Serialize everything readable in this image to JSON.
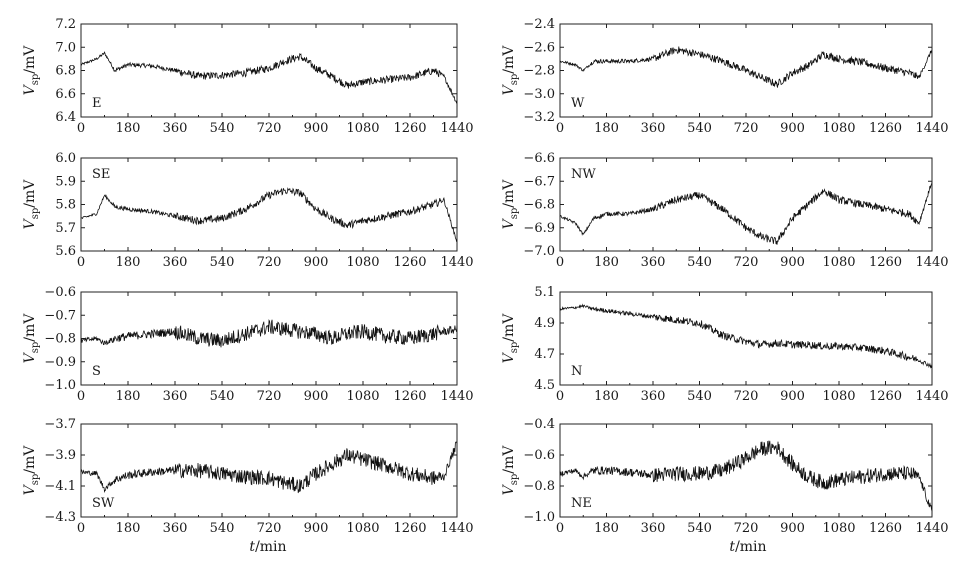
{
  "chart_data": [
    {
      "type": "line",
      "panel_label": "E",
      "ylabel": "V",
      "ylabel_sub": "sp",
      "ylabel_unit": "/mV",
      "xlim": [
        0,
        1440
      ],
      "ylim": [
        6.4,
        7.2
      ],
      "xticks": [
        "0",
        "180",
        "360",
        "540",
        "720",
        "900",
        "1080",
        "1260",
        "1440"
      ],
      "yticks": [
        "6.4",
        "6.6",
        "6.8",
        "7.0",
        "7.2"
      ],
      "x": [
        0,
        60,
        90,
        130,
        180,
        270,
        360,
        450,
        540,
        630,
        720,
        780,
        840,
        900,
        960,
        1020,
        1080,
        1170,
        1260,
        1350,
        1390,
        1440
      ],
      "values": [
        6.85,
        6.9,
        6.95,
        6.8,
        6.85,
        6.84,
        6.8,
        6.75,
        6.76,
        6.78,
        6.82,
        6.88,
        6.92,
        6.82,
        6.75,
        6.67,
        6.7,
        6.72,
        6.74,
        6.8,
        6.75,
        6.52
      ]
    },
    {
      "type": "line",
      "panel_label": "W",
      "ylabel": "V",
      "ylabel_sub": "sp",
      "ylabel_unit": "/mV",
      "xlim": [
        0,
        1440
      ],
      "ylim": [
        -3.2,
        -2.4
      ],
      "xticks": [
        "0",
        "180",
        "360",
        "540",
        "720",
        "900",
        "1080",
        "1260",
        "1440"
      ],
      "yticks": [
        "-2.4",
        "-2.6",
        "-2.8",
        "-3.0",
        "-3.2"
      ],
      "x": [
        0,
        60,
        90,
        130,
        180,
        270,
        360,
        450,
        540,
        630,
        720,
        780,
        840,
        900,
        960,
        1020,
        1080,
        1170,
        1260,
        1350,
        1390,
        1440
      ],
      "values": [
        -2.72,
        -2.75,
        -2.8,
        -2.72,
        -2.72,
        -2.72,
        -2.7,
        -2.62,
        -2.66,
        -2.72,
        -2.8,
        -2.86,
        -2.92,
        -2.82,
        -2.76,
        -2.66,
        -2.7,
        -2.73,
        -2.78,
        -2.82,
        -2.86,
        -2.62
      ]
    },
    {
      "type": "line",
      "panel_label": "SE",
      "ylabel": "V",
      "ylabel_sub": "sp",
      "ylabel_unit": "/mV",
      "xlim": [
        0,
        1440
      ],
      "ylim": [
        5.6,
        6.0
      ],
      "xticks": [
        "0",
        "180",
        "360",
        "540",
        "720",
        "900",
        "1080",
        "1260",
        "1440"
      ],
      "yticks": [
        "5.6",
        "5.7",
        "5.8",
        "5.9",
        "6.0"
      ],
      "x": [
        0,
        60,
        90,
        130,
        180,
        270,
        360,
        450,
        540,
        630,
        720,
        780,
        840,
        900,
        960,
        1020,
        1080,
        1170,
        1260,
        1350,
        1390,
        1440
      ],
      "values": [
        5.74,
        5.76,
        5.84,
        5.79,
        5.78,
        5.77,
        5.75,
        5.73,
        5.74,
        5.78,
        5.84,
        5.86,
        5.85,
        5.78,
        5.74,
        5.71,
        5.73,
        5.75,
        5.77,
        5.8,
        5.82,
        5.64
      ]
    },
    {
      "type": "line",
      "panel_label": "NW",
      "ylabel": "V",
      "ylabel_sub": "sp",
      "ylabel_unit": "/mV",
      "xlim": [
        0,
        1440
      ],
      "ylim": [
        -7.0,
        -6.6
      ],
      "xticks": [
        "0",
        "180",
        "360",
        "540",
        "720",
        "900",
        "1080",
        "1260",
        "1440"
      ],
      "yticks": [
        "-6.6",
        "-6.7",
        "-6.8",
        "-6.9",
        "-7.0"
      ],
      "x": [
        0,
        60,
        90,
        130,
        180,
        270,
        360,
        450,
        540,
        630,
        720,
        780,
        840,
        900,
        960,
        1020,
        1080,
        1170,
        1260,
        1350,
        1390,
        1440
      ],
      "values": [
        -6.85,
        -6.88,
        -6.93,
        -6.86,
        -6.84,
        -6.84,
        -6.82,
        -6.78,
        -6.76,
        -6.82,
        -6.9,
        -6.94,
        -6.96,
        -6.86,
        -6.8,
        -6.74,
        -6.78,
        -6.8,
        -6.82,
        -6.84,
        -6.88,
        -6.7
      ]
    },
    {
      "type": "line",
      "panel_label": "S",
      "ylabel": "V",
      "ylabel_sub": "sp",
      "ylabel_unit": "/mV",
      "xlim": [
        0,
        1440
      ],
      "ylim": [
        -1.0,
        -0.6
      ],
      "xticks": [
        "0",
        "180",
        "360",
        "540",
        "720",
        "900",
        "1080",
        "1260",
        "1440"
      ],
      "yticks": [
        "-0.6",
        "-0.7",
        "-0.8",
        "-0.9",
        "-1.0"
      ],
      "x": [
        0,
        60,
        90,
        130,
        180,
        270,
        360,
        450,
        540,
        630,
        720,
        780,
        840,
        900,
        960,
        1020,
        1080,
        1170,
        1260,
        1350,
        1390,
        1440
      ],
      "values": [
        -0.81,
        -0.8,
        -0.82,
        -0.8,
        -0.79,
        -0.78,
        -0.77,
        -0.8,
        -0.81,
        -0.78,
        -0.75,
        -0.76,
        -0.77,
        -0.78,
        -0.8,
        -0.78,
        -0.77,
        -0.79,
        -0.8,
        -0.78,
        -0.77,
        -0.76
      ]
    },
    {
      "type": "line",
      "panel_label": "N",
      "ylabel": "V",
      "ylabel_sub": "sp",
      "ylabel_unit": "/mV",
      "xlim": [
        0,
        1440
      ],
      "ylim": [
        4.5,
        5.1
      ],
      "xticks": [
        "0",
        "180",
        "360",
        "540",
        "720",
        "900",
        "1080",
        "1260",
        "1440"
      ],
      "yticks": [
        "4.5",
        "4.7",
        "4.9",
        "5.1"
      ],
      "x": [
        0,
        60,
        90,
        130,
        180,
        270,
        360,
        450,
        540,
        630,
        720,
        780,
        840,
        900,
        960,
        1020,
        1080,
        1170,
        1260,
        1350,
        1390,
        1440
      ],
      "values": [
        4.99,
        5.0,
        5.01,
        4.99,
        4.98,
        4.96,
        4.94,
        4.92,
        4.9,
        4.82,
        4.78,
        4.76,
        4.77,
        4.76,
        4.76,
        4.75,
        4.75,
        4.74,
        4.72,
        4.68,
        4.66,
        4.62
      ]
    },
    {
      "type": "line",
      "panel_label": "SW",
      "ylabel": "V",
      "ylabel_sub": "sp",
      "ylabel_unit": "/mV",
      "xlim": [
        0,
        1440
      ],
      "ylim": [
        -4.3,
        -3.7
      ],
      "xticks": [
        "0",
        "180",
        "360",
        "540",
        "720",
        "900",
        "1080",
        "1260",
        "1440"
      ],
      "yticks": [
        "-3.7",
        "-3.9",
        "-4.1",
        "-4.3"
      ],
      "x": [
        0,
        60,
        90,
        130,
        180,
        270,
        360,
        450,
        540,
        630,
        720,
        780,
        840,
        900,
        960,
        1020,
        1080,
        1170,
        1260,
        1350,
        1390,
        1440
      ],
      "values": [
        -4.01,
        -4.02,
        -4.12,
        -4.06,
        -4.03,
        -4.01,
        -4.0,
        -4.0,
        -4.02,
        -4.04,
        -4.05,
        -4.08,
        -4.1,
        -4.02,
        -3.96,
        -3.9,
        -3.93,
        -3.97,
        -4.02,
        -4.05,
        -4.04,
        -3.82
      ]
    },
    {
      "type": "line",
      "panel_label": "NE",
      "ylabel": "V",
      "ylabel_sub": "sp",
      "ylabel_unit": "/mV",
      "xlim": [
        0,
        1440
      ],
      "ylim": [
        -1.0,
        -0.4
      ],
      "xticks": [
        "0",
        "180",
        "360",
        "540",
        "720",
        "900",
        "1080",
        "1260",
        "1440"
      ],
      "yticks": [
        "-0.4",
        "-0.6",
        "-0.8",
        "-1.0"
      ],
      "x": [
        0,
        60,
        90,
        130,
        180,
        270,
        360,
        450,
        540,
        630,
        720,
        780,
        840,
        900,
        960,
        1020,
        1080,
        1170,
        1260,
        1350,
        1390,
        1440
      ],
      "values": [
        -0.72,
        -0.7,
        -0.74,
        -0.7,
        -0.7,
        -0.71,
        -0.73,
        -0.72,
        -0.72,
        -0.7,
        -0.62,
        -0.56,
        -0.55,
        -0.66,
        -0.74,
        -0.78,
        -0.76,
        -0.74,
        -0.72,
        -0.72,
        -0.74,
        -0.97
      ]
    }
  ],
  "x_axis_label": {
    "var": "t",
    "unit": "/min"
  }
}
